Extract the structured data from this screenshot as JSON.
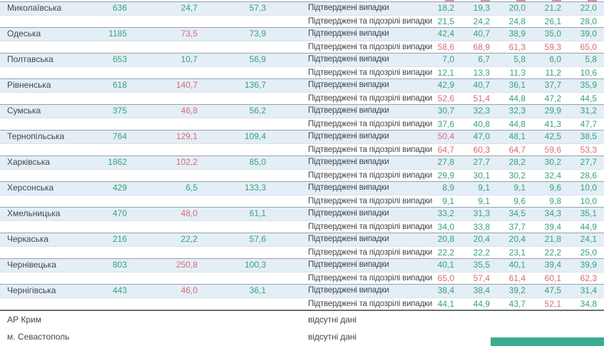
{
  "colors": {
    "positive_green": "#36a279",
    "alert_red": "#d96b72",
    "row_shade_blue": "#e4eef7",
    "divider_gray": "#99a1a7",
    "divider_dark_gray": "#687074",
    "teal_bar": "#3cab91",
    "text_dark": "#42474b"
  },
  "labels": {
    "confirmed": "Підтверджені випадки",
    "suspected": "Підтверджені та підозрілі випадки",
    "no_data": "відсутні дані"
  },
  "table": {
    "regions": [
      {
        "name": "Миколаївська",
        "cases_total": "636",
        "col2": "24,7",
        "col2_color": "green",
        "col3": "57,3",
        "rows": [
          {
            "label_key": "confirmed",
            "values": [
              "18,2",
              "19,3",
              "20,0",
              "21,2",
              "22,0"
            ],
            "colors": [
              "green",
              "green",
              "green",
              "green",
              "green"
            ]
          },
          {
            "label_key": "suspected",
            "values": [
              "21,5",
              "24,2",
              "24,8",
              "26,1",
              "28,0"
            ],
            "colors": [
              "green",
              "green",
              "green",
              "green",
              "green"
            ]
          }
        ]
      },
      {
        "name": "Одеська",
        "cases_total": "1185",
        "col2": "73,5",
        "col2_color": "red",
        "col3": "73,9",
        "rows": [
          {
            "label_key": "confirmed",
            "values": [
              "42,4",
              "40,7",
              "38,9",
              "35,0",
              "39,0"
            ],
            "colors": [
              "green",
              "green",
              "green",
              "green",
              "green"
            ]
          },
          {
            "label_key": "suspected",
            "values": [
              "58,6",
              "68,9",
              "61,3",
              "59,3",
              "65,0"
            ],
            "colors": [
              "red",
              "red",
              "red",
              "red",
              "red"
            ]
          }
        ]
      },
      {
        "name": "Полтавська",
        "cases_total": "653",
        "col2": "10,7",
        "col2_color": "green",
        "col3": "56,9",
        "rows": [
          {
            "label_key": "confirmed",
            "values": [
              "7,0",
              "6,7",
              "5,8",
              "6,0",
              "5,8"
            ],
            "colors": [
              "green",
              "green",
              "green",
              "green",
              "green"
            ]
          },
          {
            "label_key": "suspected",
            "values": [
              "12,1",
              "13,3",
              "11,3",
              "11,2",
              "10,6"
            ],
            "colors": [
              "green",
              "green",
              "green",
              "green",
              "green"
            ]
          }
        ]
      },
      {
        "name": "Рівненська",
        "cases_total": "618",
        "col2": "140,7",
        "col2_color": "red",
        "col3": "136,7",
        "rows": [
          {
            "label_key": "confirmed",
            "values": [
              "42,9",
              "40,7",
              "36,1",
              "37,7",
              "35,9"
            ],
            "colors": [
              "green",
              "green",
              "green",
              "green",
              "green"
            ]
          },
          {
            "label_key": "suspected",
            "values": [
              "52,6",
              "51,4",
              "44,8",
              "47,2",
              "44,5"
            ],
            "colors": [
              "red",
              "red",
              "green",
              "green",
              "green"
            ]
          }
        ]
      },
      {
        "name": "Сумська",
        "cases_total": "375",
        "col2": "46,8",
        "col2_color": "red",
        "col3": "56,2",
        "rows": [
          {
            "label_key": "confirmed",
            "values": [
              "30,7",
              "32,3",
              "32,3",
              "29,9",
              "31,2"
            ],
            "colors": [
              "green",
              "green",
              "green",
              "green",
              "green"
            ]
          },
          {
            "label_key": "suspected",
            "values": [
              "37,6",
              "40,8",
              "44,8",
              "41,3",
              "47,7"
            ],
            "colors": [
              "green",
              "green",
              "green",
              "green",
              "green"
            ]
          }
        ]
      },
      {
        "name": "Тернопільська",
        "cases_total": "764",
        "col2": "129,1",
        "col2_color": "red",
        "col3": "109,4",
        "rows": [
          {
            "label_key": "confirmed",
            "values": [
              "50,4",
              "47,0",
              "48,1",
              "42,5",
              "38,5"
            ],
            "colors": [
              "red",
              "green",
              "green",
              "green",
              "green"
            ]
          },
          {
            "label_key": "suspected",
            "values": [
              "64,7",
              "60,3",
              "64,7",
              "59,6",
              "53,3"
            ],
            "colors": [
              "red",
              "red",
              "red",
              "red",
              "red"
            ]
          }
        ]
      },
      {
        "name": "Харківська",
        "cases_total": "1862",
        "col2": "102,2",
        "col2_color": "red",
        "col3": "85,0",
        "rows": [
          {
            "label_key": "confirmed",
            "values": [
              "27,8",
              "27,7",
              "28,2",
              "30,2",
              "27,7"
            ],
            "colors": [
              "green",
              "green",
              "green",
              "green",
              "green"
            ]
          },
          {
            "label_key": "suspected",
            "values": [
              "29,9",
              "30,1",
              "30,2",
              "32,4",
              "28,6"
            ],
            "colors": [
              "green",
              "green",
              "green",
              "green",
              "green"
            ]
          }
        ]
      },
      {
        "name": "Херсонська",
        "cases_total": "429",
        "col2": "6,5",
        "col2_color": "green",
        "col3": "133,3",
        "rows": [
          {
            "label_key": "confirmed",
            "values": [
              "8,9",
              "9,1",
              "9,1",
              "9,6",
              "10,0"
            ],
            "colors": [
              "green",
              "green",
              "green",
              "green",
              "green"
            ]
          },
          {
            "label_key": "suspected",
            "values": [
              "9,1",
              "9,1",
              "9,6",
              "9,8",
              "10,0"
            ],
            "colors": [
              "green",
              "green",
              "green",
              "green",
              "green"
            ]
          }
        ]
      },
      {
        "name": "Хмельницька",
        "cases_total": "470",
        "col2": "48,0",
        "col2_color": "red",
        "col3": "61,1",
        "rows": [
          {
            "label_key": "confirmed",
            "values": [
              "33,2",
              "31,3",
              "34,5",
              "34,3",
              "35,1"
            ],
            "colors": [
              "green",
              "green",
              "green",
              "green",
              "green"
            ]
          },
          {
            "label_key": "suspected",
            "values": [
              "34,0",
              "33,8",
              "37,7",
              "39,4",
              "44,9"
            ],
            "colors": [
              "green",
              "green",
              "green",
              "green",
              "green"
            ]
          }
        ]
      },
      {
        "name": "Черкаська",
        "cases_total": "216",
        "col2": "22,2",
        "col2_color": "green",
        "col3": "57,6",
        "rows": [
          {
            "label_key": "confirmed",
            "values": [
              "20,8",
              "20,4",
              "20,4",
              "21,8",
              "24,1"
            ],
            "colors": [
              "green",
              "green",
              "green",
              "green",
              "green"
            ]
          },
          {
            "label_key": "suspected",
            "values": [
              "22,2",
              "22,2",
              "23,1",
              "22,2",
              "25,0"
            ],
            "colors": [
              "green",
              "green",
              "green",
              "green",
              "green"
            ]
          }
        ]
      },
      {
        "name": "Чернівецька",
        "cases_total": "803",
        "col2": "250,8",
        "col2_color": "red",
        "col3": "100,3",
        "rows": [
          {
            "label_key": "confirmed",
            "values": [
              "40,1",
              "35,5",
              "40,1",
              "39,4",
              "39,9"
            ],
            "colors": [
              "green",
              "green",
              "green",
              "green",
              "green"
            ]
          },
          {
            "label_key": "suspected",
            "values": [
              "65,0",
              "57,4",
              "61,4",
              "60,1",
              "62,3"
            ],
            "colors": [
              "red",
              "red",
              "red",
              "red",
              "red"
            ]
          }
        ]
      },
      {
        "name": "Чернігівська",
        "cases_total": "443",
        "col2": "46,0",
        "col2_color": "red",
        "col3": "36,1",
        "rows": [
          {
            "label_key": "confirmed",
            "values": [
              "38,4",
              "38,4",
              "39,2",
              "47,5",
              "31,4"
            ],
            "colors": [
              "green",
              "green",
              "green",
              "green",
              "green"
            ]
          },
          {
            "label_key": "suspected",
            "values": [
              "44,1",
              "44,9",
              "43,7",
              "52,1",
              "34,8"
            ],
            "colors": [
              "green",
              "green",
              "green",
              "red",
              "green"
            ]
          }
        ]
      }
    ],
    "no_data_regions": [
      "АР Крим",
      "м. Севастополь"
    ]
  }
}
